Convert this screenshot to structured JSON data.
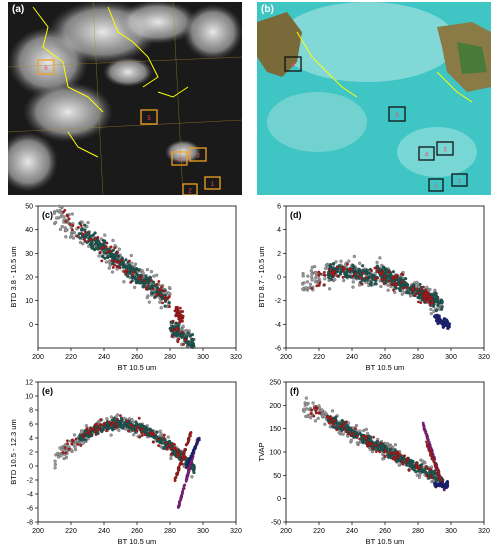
{
  "panels": {
    "a": {
      "letter": "(a)",
      "box_labels": [
        "6",
        "5",
        "4",
        "3",
        "2",
        "1"
      ]
    },
    "b": {
      "letter": "(b)",
      "box_labels": [
        "6",
        "5",
        "4",
        "3",
        "2",
        "1"
      ]
    }
  },
  "colors": {
    "grey_points": "#9a9a9a",
    "teal_points": "#1d5a55",
    "red_points": "#b01818",
    "navy_points": "#1a1f7a",
    "purple_points": "#8b1a8b",
    "box_a": "#f0a020",
    "box_b": "#111111",
    "coast": "#ffff00"
  },
  "chart_data": [
    {
      "panel": "(c)",
      "type": "scatter",
      "xlabel": "BT 10.5 um",
      "ylabel": "BTD 3.8 - 10.5 um",
      "xlim": [
        200,
        320
      ],
      "ylim": [
        -10,
        50
      ],
      "xticks": [
        200,
        220,
        240,
        260,
        280,
        300,
        320
      ],
      "yticks": [
        0,
        10,
        20,
        30,
        40,
        50
      ]
    },
    {
      "panel": "(d)",
      "type": "scatter",
      "xlabel": "BT 10.5 um",
      "ylabel": "BTD 8.7 - 10.5 um",
      "xlim": [
        200,
        320
      ],
      "ylim": [
        -6,
        6
      ],
      "xticks": [
        200,
        220,
        240,
        260,
        280,
        300,
        320
      ],
      "yticks": [
        -6,
        -4,
        -2,
        0,
        2,
        4,
        6
      ]
    },
    {
      "panel": "(e)",
      "type": "scatter",
      "xlabel": "BT 10.5 um",
      "ylabel": "BTD 10.5 - 12.3 um",
      "xlim": [
        200,
        320
      ],
      "ylim": [
        -8,
        12
      ],
      "xticks": [
        200,
        220,
        240,
        260,
        280,
        300,
        320
      ],
      "yticks": [
        -8,
        -6,
        -4,
        -2,
        0,
        2,
        4,
        6,
        8,
        10,
        12
      ]
    },
    {
      "panel": "(f)",
      "type": "scatter",
      "xlabel": "BT 10.5 um",
      "ylabel": "TVAP",
      "xlim": [
        200,
        320
      ],
      "ylim": [
        -50,
        250
      ],
      "xticks": [
        200,
        220,
        240,
        260,
        280,
        300,
        320
      ],
      "yticks": [
        -50,
        0,
        50,
        100,
        150,
        200,
        250
      ]
    }
  ]
}
